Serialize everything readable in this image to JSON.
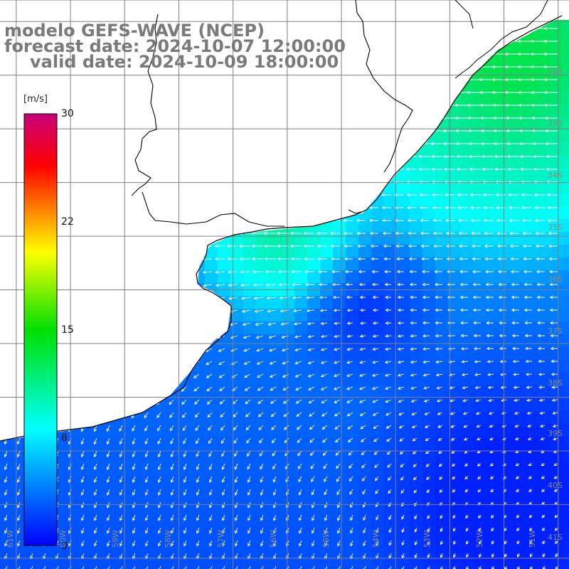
{
  "title": {
    "model": "modelo GEFS-WAVE (NCEP)",
    "forecast": "forecast date: 2024-10-07 12:00:00",
    "valid": "valid date: 2024-10-09 18:00:00"
  },
  "colorbar": {
    "unit": "[m/s]",
    "ticks": [
      "30",
      "22",
      "15",
      "8",
      "0"
    ],
    "tick_values": [
      30,
      22,
      15,
      8,
      0
    ],
    "min": 0,
    "max": 30,
    "colors": [
      "#0000ff",
      "#00c8ff",
      "#00ffd0",
      "#00e000",
      "#ffff00",
      "#ff8000",
      "#ff0000",
      "#c8007a"
    ]
  },
  "axes": {
    "lat_labels": [
      "32S",
      "33S",
      "34S",
      "35S",
      "36S",
      "37S",
      "38S",
      "39S",
      "40S",
      "41S"
    ],
    "lat_values": [
      -32,
      -33,
      -34,
      -35,
      -36,
      -37,
      -38,
      -39,
      -40,
      -41
    ],
    "lon_labels": [
      "61W",
      "60W",
      "59W",
      "58W",
      "57W",
      "56W",
      "55W",
      "54W",
      "53W",
      "52W",
      "51W"
    ],
    "lon_values": [
      -61,
      -60,
      -59,
      -58,
      -57,
      -56,
      -55,
      -54,
      -53,
      -52,
      -51
    ],
    "lat_range": [
      -41.2,
      -30.6
    ],
    "lon_range": [
      -61.3,
      -50.8
    ]
  },
  "style": {
    "land": "#ffffff",
    "grid": "#7f7f7f",
    "coast": "#000000",
    "arrows": "#ffffff",
    "labels": "#8a8a8a"
  },
  "wind_field": {
    "direction": "mostly easterly, turning north-easterly toward the south-west corner",
    "speed_range_ms": [
      2,
      13
    ]
  }
}
